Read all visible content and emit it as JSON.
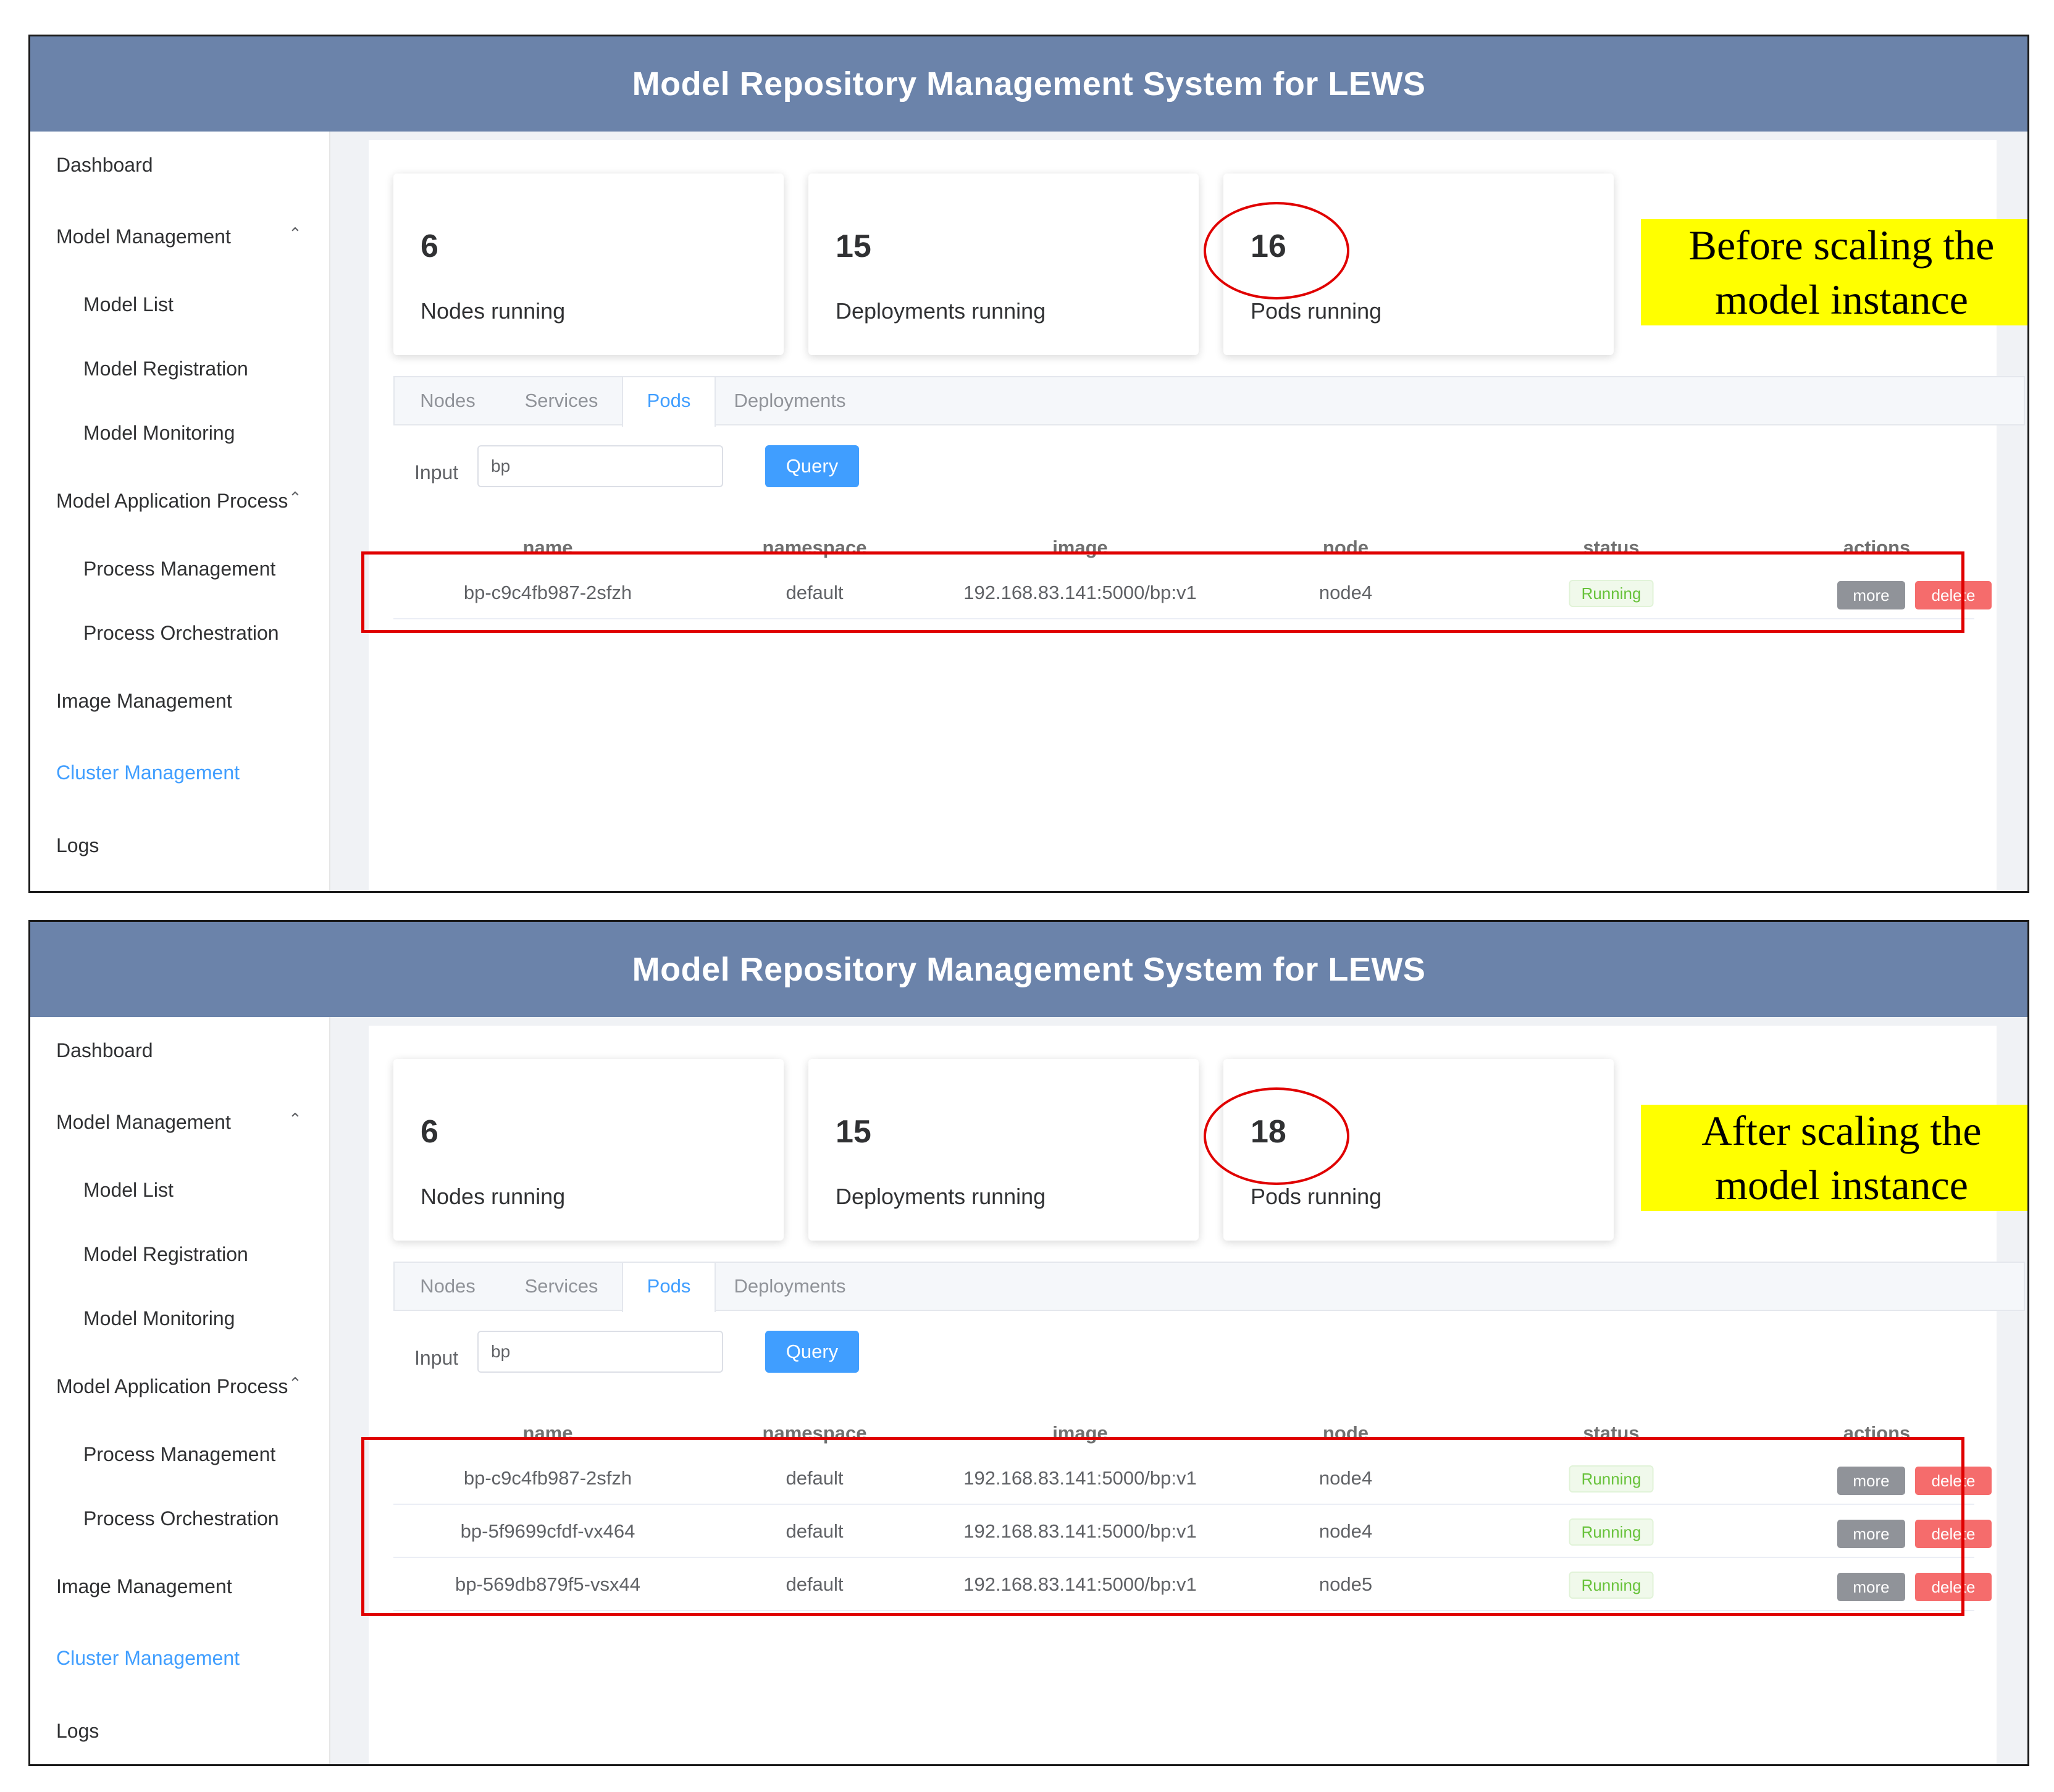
{
  "app_title": "Model Repository Management System for LEWS",
  "sidebar": {
    "dashboard": "Dashboard",
    "model_management": "Model Management",
    "model_list": "Model List",
    "model_registration": "Model Registration",
    "model_monitoring": "Model Monitoring",
    "model_application_process": "Model Application Process",
    "process_management": "Process Management",
    "process_orchestration": "Process Orchestration",
    "image_management": "Image Management",
    "cluster_management": "Cluster Management",
    "logs": "Logs",
    "expand_icon": "chevron-up-icon",
    "active_color": "#409eff"
  },
  "tabs": [
    "Nodes",
    "Services",
    "Pods",
    "Deployments"
  ],
  "active_tab": "Pods",
  "query": {
    "label": "Input",
    "value": "bp",
    "button": "Query"
  },
  "table_headers": [
    "name",
    "namespace",
    "image",
    "node",
    "status",
    "actions"
  ],
  "actions": {
    "more": "more",
    "delete": "delete"
  },
  "colors": {
    "header_bg": "#6b83aa",
    "primary": "#409eff",
    "success": "#67c23a",
    "danger": "#f56c6c",
    "highlight": "#e00000",
    "callout_bg": "#ffff00"
  },
  "before": {
    "stats": [
      {
        "value": "6",
        "label": "Nodes running"
      },
      {
        "value": "15",
        "label": "Deployments running"
      },
      {
        "value": "16",
        "label": "Pods running"
      }
    ],
    "callout": [
      "Before scaling the",
      "model instance"
    ],
    "rows": [
      {
        "name": "bp-c9c4fb987-2sfzh",
        "namespace": "default",
        "image": "192.168.83.141:5000/bp:v1",
        "node": "node4",
        "status": "Running"
      }
    ]
  },
  "after": {
    "stats": [
      {
        "value": "6",
        "label": "Nodes running"
      },
      {
        "value": "15",
        "label": "Deployments running"
      },
      {
        "value": "18",
        "label": "Pods running"
      }
    ],
    "callout": [
      "After scaling the",
      "model instance"
    ],
    "rows": [
      {
        "name": "bp-c9c4fb987-2sfzh",
        "namespace": "default",
        "image": "192.168.83.141:5000/bp:v1",
        "node": "node4",
        "status": "Running"
      },
      {
        "name": "bp-5f9699cfdf-vx464",
        "namespace": "default",
        "image": "192.168.83.141:5000/bp:v1",
        "node": "node4",
        "status": "Running"
      },
      {
        "name": "bp-569db879f5-vsx44",
        "namespace": "default",
        "image": "192.168.83.141:5000/bp:v1",
        "node": "node5",
        "status": "Running"
      }
    ]
  }
}
